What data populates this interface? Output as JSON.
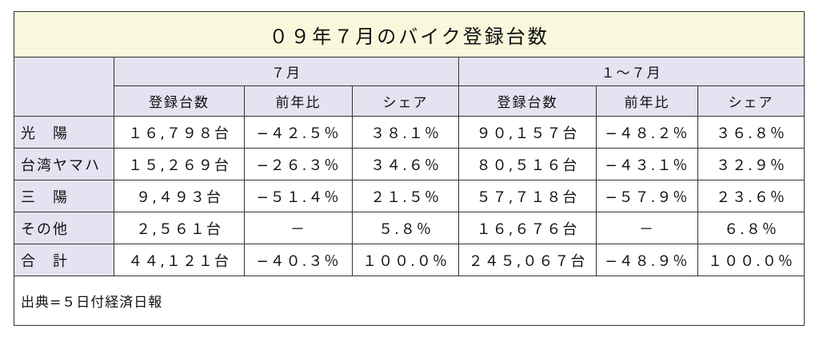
{
  "title": "０９年７月のバイク登録台数",
  "header": {
    "groups": [
      "７月",
      "１～７月"
    ],
    "columns": [
      "登録台数",
      "前年比",
      "シェア",
      "登録台数",
      "前年比",
      "シェア"
    ]
  },
  "rows": [
    {
      "label": "光　陽",
      "cells": [
        "１６,７９８台",
        "−４２.５％",
        "３８.１％",
        "９０,１５７台",
        "−４８.２％",
        "３６.８％"
      ]
    },
    {
      "label": "台湾ヤマハ",
      "cells": [
        "１５,２６９台",
        "−２６.３％",
        "３４.６％",
        "８０,５１６台",
        "−４３.１％",
        "３２.９％"
      ]
    },
    {
      "label": "三　陽",
      "cells": [
        "９,４９３台",
        "−５１.４％",
        "２１.５％",
        "５７,７１８台",
        "−５７.９％",
        "２３.６％"
      ]
    },
    {
      "label": "その他",
      "cells": [
        "２,５６１台",
        "－",
        "５.８％",
        "１６,６７６台",
        "－",
        "６.８％"
      ]
    },
    {
      "label": "合　計",
      "cells": [
        "４４,１２１台",
        "−４０.３％",
        "１００.０％",
        "２４５,０６７台",
        "−４８.９％",
        "１００.０％"
      ]
    }
  ],
  "source": "出典=５日付経済日報"
}
